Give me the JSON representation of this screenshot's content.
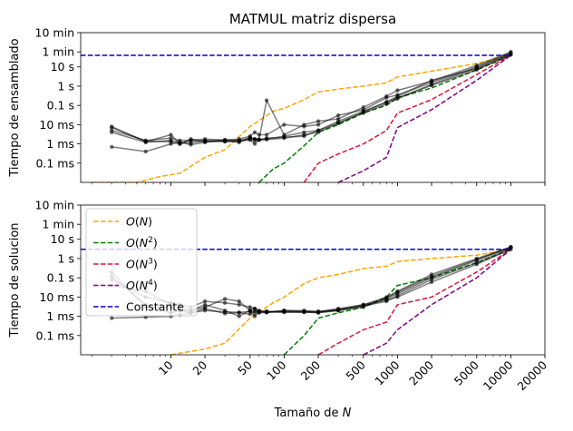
{
  "chart_data": {
    "type": "line",
    "title": "MATMUL matriz dispersa",
    "x_scale": "log",
    "y_scale": "log",
    "xlabel": "Tamaño de N",
    "xlim": [
      1.6,
      20000
    ],
    "x_ticks": [
      10,
      20,
      50,
      100,
      200,
      500,
      1000,
      2000,
      5000,
      10000,
      20000
    ],
    "x_tick_labels": [
      "10",
      "20",
      "50",
      "100",
      "200",
      "500",
      "1000",
      "2000",
      "5000",
      "10000",
      "20000"
    ],
    "ylim_seconds": [
      1e-05,
      600
    ],
    "y_ticks_seconds": [
      0.0001,
      0.001,
      0.01,
      0.1,
      1,
      10,
      60,
      600
    ],
    "y_tick_labels": [
      "0.1 ms",
      "1 ms",
      "10 ms",
      "0.1 s",
      "1 s",
      "10 s",
      "1 min",
      "10 min"
    ],
    "legend": {
      "placement": "upper-left",
      "entries": [
        {
          "label": "O(N)",
          "name": "O",
          "sym": "(N)",
          "sup": "",
          "color": "#FFA500"
        },
        {
          "label": "O(N²)",
          "name": "O",
          "sym": "(N",
          "sup": "2",
          "color": "#008000"
        },
        {
          "label": "O(N³)",
          "name": "O",
          "sym": "(N",
          "sup": "3",
          "color": "#DC143C"
        },
        {
          "label": "O(N⁴)",
          "name": "O",
          "sym": "(N",
          "sup": "4",
          "color": "#800080"
        },
        {
          "label": "Constante",
          "name": "Constante",
          "sym": "",
          "sup": "",
          "color": "#0000CD"
        }
      ]
    },
    "panels": [
      {
        "ylabel": "Tiempo de ensamblado",
        "show_title": true,
        "show_x_tick_labels": false,
        "show_legend": false,
        "constant_seconds": 40,
        "reference_curves": [
          {
            "name": "O(N)",
            "color": "#FFA500",
            "x": [
              2,
              5,
              8,
              12,
              20,
              30,
              50,
              80,
              100,
              150,
              200,
              300,
              500,
              800,
              1000,
              2000,
              5000,
              10000
            ],
            "y": [
              1e-05,
              1e-05,
              2e-05,
              3e-05,
              0.0002,
              0.0005,
              0.008,
              0.05,
              0.07,
              0.2,
              0.5,
              0.7,
              1,
              1.5,
              3,
              6,
              15,
              40
            ]
          },
          {
            "name": "O(N²)",
            "color": "#008000",
            "x": [
              60,
              80,
              100,
              150,
              200,
              300,
              500,
              800,
              1000,
              2000,
              5000,
              10000
            ],
            "y": [
              1e-05,
              5e-05,
              0.0001,
              0.0008,
              0.004,
              0.01,
              0.04,
              0.1,
              0.25,
              0.8,
              7,
              40
            ]
          },
          {
            "name": "O(N³)",
            "color": "#DC143C",
            "x": [
              150,
              200,
              300,
              500,
              800,
              1000,
              2000,
              5000,
              10000
            ],
            "y": [
              1e-05,
              0.0001,
              0.0003,
              0.001,
              0.005,
              0.04,
              0.2,
              4,
              40
            ]
          },
          {
            "name": "O(N⁴)",
            "color": "#800080",
            "x": [
              300,
              500,
              800,
              1000,
              2000,
              5000,
              10000
            ],
            "y": [
              1e-05,
              4e-05,
              0.0002,
              0.007,
              0.06,
              2,
              40
            ]
          }
        ],
        "runs": [
          {
            "x": [
              3,
              6,
              10,
              12,
              15,
              20,
              30,
              40,
              50,
              55,
              60,
              70,
              100,
              150,
              200,
              300,
              500,
              800,
              1000,
              2000,
              5000,
              10000
            ],
            "y": [
              0.007,
              0.0014,
              0.0013,
              0.001,
              0.0015,
              0.0013,
              0.0014,
              0.0012,
              0.0022,
              0.0018,
              0.0017,
              0.002,
              0.0022,
              0.0025,
              0.005,
              0.015,
              0.05,
              0.15,
              0.3,
              2,
              8,
              45
            ]
          },
          {
            "x": [
              3,
              6,
              10,
              12,
              15,
              20,
              30,
              40,
              50,
              55,
              60,
              70,
              100,
              150,
              200,
              300,
              500,
              800,
              1000,
              2000,
              5000,
              10000
            ],
            "y": [
              0.005,
              0.0015,
              0.002,
              0.0015,
              0.0015,
              0.0018,
              0.0016,
              0.0018,
              0.0025,
              0.004,
              0.003,
              0.003,
              0.01,
              0.008,
              0.01,
              0.03,
              0.06,
              0.25,
              0.35,
              1.5,
              10,
              55
            ]
          },
          {
            "x": [
              3,
              6,
              10,
              12,
              15,
              20,
              30,
              40,
              50,
              55,
              60,
              70,
              100,
              150,
              200,
              300,
              500,
              800,
              1000,
              2000,
              5000,
              10000
            ],
            "y": [
              0.0007,
              0.0004,
              0.001,
              0.0012,
              0.0009,
              0.0012,
              0.0015,
              0.0014,
              0.0016,
              0.001,
              0.0016,
              0.0018,
              0.0025,
              0.004,
              0.005,
              0.012,
              0.045,
              0.15,
              0.25,
              1.2,
              9,
              50
            ]
          },
          {
            "x": [
              3,
              6,
              10,
              12,
              15,
              20,
              30,
              40,
              50,
              55,
              60,
              70,
              100,
              150,
              200,
              300,
              500,
              800,
              1000,
              2000,
              5000,
              10000
            ],
            "y": [
              0.008,
              0.0013,
              0.003,
              0.001,
              0.0018,
              0.0014,
              0.0016,
              0.0015,
              0.002,
              0.0018,
              0.0017,
              0.18,
              0.003,
              0.01,
              0.015,
              0.02,
              0.08,
              0.3,
              0.6,
              1.8,
              12,
              60
            ]
          },
          {
            "x": [
              3,
              6,
              10,
              12,
              15,
              20,
              30,
              40,
              50,
              55,
              60,
              70,
              100,
              150,
              200,
              300,
              500,
              800,
              1000,
              2000,
              5000,
              10000
            ],
            "y": [
              0.004,
              0.0012,
              0.0015,
              0.0012,
              0.0011,
              0.0015,
              0.0013,
              0.0014,
              0.0018,
              0.0015,
              0.0016,
              0.0017,
              0.002,
              0.003,
              0.004,
              0.012,
              0.04,
              0.12,
              0.22,
              1.1,
              7,
              42
            ]
          }
        ]
      },
      {
        "ylabel": "Tiempo de solucion",
        "show_title": false,
        "show_x_tick_labels": true,
        "show_legend": true,
        "constant_seconds": 3,
        "reference_curves": [
          {
            "name": "O(N)",
            "color": "#FFA500",
            "x": [
              10,
              20,
              30,
              50,
              80,
              100,
              150,
              200,
              300,
              500,
              800,
              1000,
              2000,
              5000,
              10000
            ],
            "y": [
              1e-05,
              2e-05,
              4e-05,
              0.0008,
              0.005,
              0.01,
              0.05,
              0.1,
              0.15,
              0.3,
              0.4,
              0.7,
              1,
              1.5,
              3
            ]
          },
          {
            "name": "O(N²)",
            "color": "#008000",
            "x": [
              100,
              150,
              200,
              300,
              500,
              800,
              1000,
              2000,
              5000,
              10000
            ],
            "y": [
              1e-05,
              0.0001,
              0.0008,
              0.0015,
              0.003,
              0.01,
              0.04,
              0.1,
              0.6,
              3
            ]
          },
          {
            "name": "O(N³)",
            "color": "#DC143C",
            "x": [
              200,
              300,
              500,
              800,
              1000,
              2000,
              5000,
              10000
            ],
            "y": [
              1e-05,
              4e-05,
              0.0002,
              0.0005,
              0.004,
              0.01,
              0.2,
              3
            ]
          },
          {
            "name": "O(N⁴)",
            "color": "#800080",
            "x": [
              500,
              800,
              1000,
              2000,
              5000,
              10000
            ],
            "y": [
              1e-05,
              4e-05,
              0.0002,
              0.004,
              0.1,
              3
            ]
          }
        ],
        "runs": [
          {
            "x": [
              3,
              6,
              10,
              12,
              15,
              20,
              30,
              40,
              50,
              55,
              60,
              70,
              100,
              150,
              200,
              300,
              500,
              800,
              1000,
              2000,
              5000,
              10000
            ],
            "y": [
              0.2,
              0.003,
              0.003,
              0.002,
              0.002,
              0.004,
              0.002,
              0.001,
              0.002,
              0.0015,
              0.0018,
              0.0016,
              0.002,
              0.0018,
              0.0017,
              0.0025,
              0.004,
              0.01,
              0.02,
              0.15,
              1,
              4
            ]
          },
          {
            "x": [
              3,
              6,
              10,
              12,
              15,
              20,
              30,
              40,
              50,
              55,
              60,
              70,
              100,
              150,
              200,
              300,
              500,
              800,
              1000,
              2000,
              5000,
              10000
            ],
            "y": [
              0.08,
              0.01,
              0.005,
              0.004,
              0.003,
              0.006,
              0.005,
              0.004,
              0.003,
              0.0025,
              0.002,
              0.0018,
              0.0018,
              0.0017,
              0.0016,
              0.002,
              0.003,
              0.008,
              0.015,
              0.1,
              0.8,
              4
            ]
          },
          {
            "x": [
              3,
              6,
              10,
              12,
              15,
              20,
              30,
              40,
              50,
              55,
              60,
              70,
              100,
              150,
              200,
              300,
              500,
              800,
              1000,
              2000,
              5000,
              10000
            ],
            "y": [
              0.04,
              0.02,
              0.004,
              0.003,
              0.002,
              0.003,
              0.008,
              0.006,
              0.002,
              0.0025,
              0.0017,
              0.0016,
              0.002,
              0.002,
              0.0018,
              0.0022,
              0.0035,
              0.006,
              0.012,
              0.08,
              0.6,
              3.5
            ]
          },
          {
            "x": [
              3,
              6,
              10,
              12,
              15,
              20,
              30,
              40,
              50,
              55,
              60,
              70,
              100,
              150,
              200,
              300,
              500,
              800,
              1000,
              2000,
              5000,
              10000
            ],
            "y": [
              0.0008,
              0.0009,
              0.001,
              0.0012,
              0.0015,
              0.002,
              0.0017,
              0.0016,
              0.0018,
              0.001,
              0.0017,
              0.0018,
              0.0016,
              0.0017,
              0.0015,
              0.002,
              0.004,
              0.007,
              0.01,
              0.06,
              0.5,
              3
            ]
          },
          {
            "x": [
              3,
              6,
              10,
              12,
              15,
              20,
              30,
              40,
              50,
              55,
              60,
              70,
              100,
              150,
              200,
              300,
              500,
              800,
              1000,
              2000,
              5000,
              10000
            ],
            "y": [
              0.12,
              0.004,
              0.0015,
              0.002,
              0.0015,
              0.0025,
              0.0014,
              0.0015,
              0.0013,
              0.002,
              0.0015,
              0.0016,
              0.0017,
              0.0016,
              0.0017,
              0.0022,
              0.0035,
              0.009,
              0.018,
              0.12,
              0.9,
              3.8
            ]
          }
        ]
      }
    ]
  }
}
